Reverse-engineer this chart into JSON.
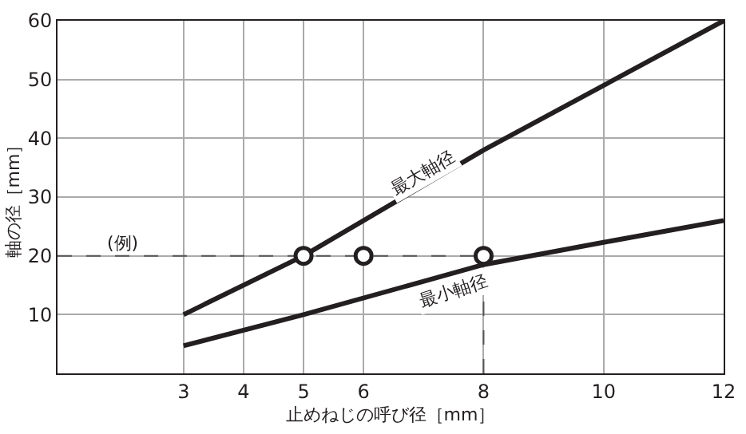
{
  "chart_data": {
    "type": "line",
    "xlabel": "止めねじの呼び径［mm］",
    "ylabel": "軸の径［mm］",
    "xlim": [
      0.9,
      12
    ],
    "xticks": [
      3,
      4,
      5,
      6,
      8,
      10,
      12
    ],
    "ylim": [
      0,
      60
    ],
    "yticks": [
      10,
      20,
      30,
      40,
      50,
      60
    ],
    "grid": true,
    "series": [
      {
        "color": "#231f20",
        "x": [
          3,
          5,
          8,
          12
        ],
        "values": [
          10,
          20,
          38,
          60
        ]
      },
      {
        "color": "#231f20",
        "x": [
          3,
          5,
          8,
          10,
          12
        ],
        "values": [
          4.7,
          10,
          18.5,
          22.3,
          26
        ]
      },
      {
        "color": "#555555",
        "line_style": "dashed",
        "x": [
          0.9,
          8
        ],
        "values": [
          20,
          20
        ]
      },
      {
        "color": "#555555",
        "line_style": "dashed",
        "x": [
          8,
          8
        ],
        "values": [
          0,
          20
        ]
      },
      {
        "type": "scatter",
        "color": "#231f20",
        "marker": "circle",
        "x": [
          5,
          6,
          8
        ],
        "values": [
          20,
          20,
          20
        ]
      }
    ],
    "annotations": [
      "(例)",
      "最大軸径",
      "最小軸径"
    ]
  }
}
